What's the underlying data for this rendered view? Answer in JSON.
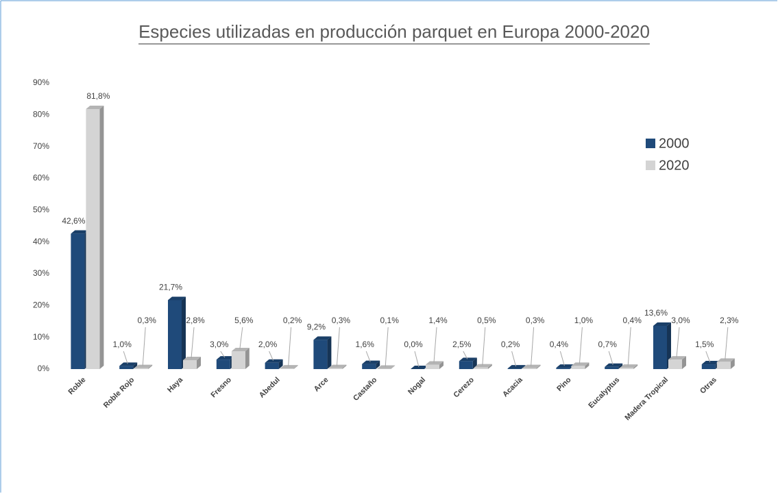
{
  "chart_data": {
    "type": "bar3d",
    "title": "Especies utilizadas en producción parquet en Europa 2000-2020",
    "categories": [
      "Roble",
      "Roble Rojo",
      "Haya",
      "Fresno",
      "Abedul",
      "Arce",
      "Castaño",
      "Nogal",
      "Cerezo",
      "Acacia",
      "Pino",
      "Eucalyptus",
      "Madera Tropical",
      "Otras"
    ],
    "series": [
      {
        "name": "2000",
        "color": "#1f4a7a",
        "values": [
          42.6,
          1.0,
          21.7,
          3.0,
          2.0,
          9.2,
          1.6,
          0.0,
          2.5,
          0.2,
          0.4,
          0.7,
          13.6,
          1.5
        ],
        "value_labels": [
          "42,6%",
          "1,0%",
          "21,7%",
          "3,0%",
          "2,0%",
          "9,2%",
          "1,6%",
          "0,0%",
          "2,5%",
          "0,2%",
          "0,4%",
          "0,7%",
          "13,6%",
          "1,5%"
        ]
      },
      {
        "name": "2020",
        "color": "#d4d4d4",
        "values": [
          81.8,
          0.3,
          2.8,
          5.6,
          0.2,
          0.3,
          0.1,
          1.4,
          0.5,
          0.3,
          1.0,
          0.4,
          3.0,
          2.3
        ],
        "value_labels": [
          "81,8%",
          "0,3%",
          "2,8%",
          "5,6%",
          "0,2%",
          "0,3%",
          "0,1%",
          "1,4%",
          "0,5%",
          "0,3%",
          "1,0%",
          "0,4%",
          "3,0%",
          "2,3%"
        ]
      }
    ],
    "ylim": [
      0,
      90
    ],
    "yticks": [
      {
        "value": 0,
        "label": "0%"
      },
      {
        "value": 10,
        "label": "10%"
      },
      {
        "value": 20,
        "label": "20%"
      },
      {
        "value": 30,
        "label": "30%"
      },
      {
        "value": 40,
        "label": "40%"
      },
      {
        "value": 50,
        "label": "50%"
      },
      {
        "value": 60,
        "label": "60%"
      },
      {
        "value": 70,
        "label": "70%"
      },
      {
        "value": 80,
        "label": "80%"
      },
      {
        "value": 90,
        "label": "90%"
      }
    ],
    "legend": "right"
  }
}
